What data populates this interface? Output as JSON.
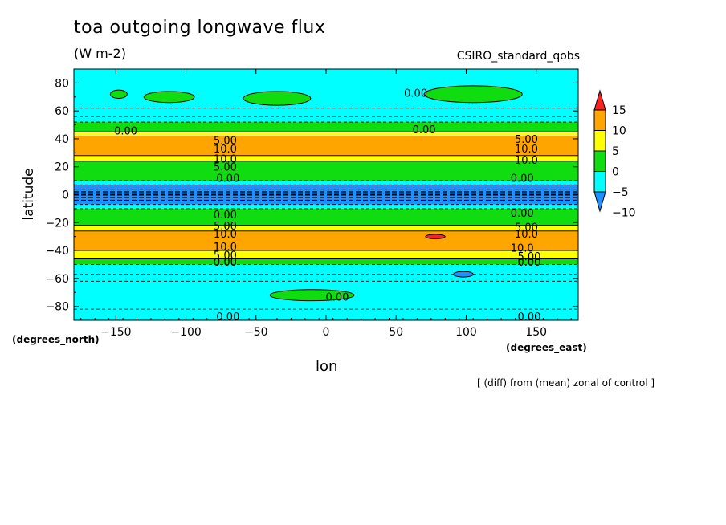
{
  "chart_data": {
    "type": "heatmap",
    "title": "toa outgoing longwave flux",
    "units": "(W m-2)",
    "model": "CSIRO_standard_qobs",
    "xlabel": "lon",
    "ylabel": "latitude",
    "x_units": "(degrees_east)",
    "y_units": "(degrees_north)",
    "note": "[ (diff) from (mean) zonal of control ]",
    "xlim": [
      -180,
      180
    ],
    "ylim": [
      -90,
      90
    ],
    "x_ticks": [
      -150,
      -100,
      -50,
      0,
      50,
      100,
      150
    ],
    "y_ticks": [
      80,
      60,
      40,
      20,
      0,
      -20,
      -40,
      -60,
      -80
    ],
    "colorbar": {
      "levels": [
        15,
        10,
        5,
        0,
        -5,
        -10
      ],
      "labels": [
        "15",
        "10",
        "5",
        "0",
        "-5",
        "-10"
      ],
      "colors": [
        "#ff2020",
        "#ffa500",
        "#ffff00",
        "#10dd10",
        "#00ffff",
        "#1e90ff"
      ]
    },
    "bands": [
      {
        "lat_from": -90,
        "lat_to": -50,
        "value": -5
      },
      {
        "lat_from": -50,
        "lat_to": -46,
        "value": 0
      },
      {
        "lat_from": -46,
        "lat_to": -40,
        "value": 5
      },
      {
        "lat_from": -40,
        "lat_to": -26,
        "value": 10
      },
      {
        "lat_from": -26,
        "lat_to": -22,
        "value": 5
      },
      {
        "lat_from": -22,
        "lat_to": -10,
        "value": 0
      },
      {
        "lat_from": -10,
        "lat_to": -7,
        "value": -5
      },
      {
        "lat_from": -7,
        "lat_to": 7,
        "value": -10
      },
      {
        "lat_from": 7,
        "lat_to": 10,
        "value": -5
      },
      {
        "lat_from": 10,
        "lat_to": 24,
        "value": 0
      },
      {
        "lat_from": 24,
        "lat_to": 28,
        "value": 5
      },
      {
        "lat_from": 28,
        "lat_to": 42,
        "value": 10
      },
      {
        "lat_from": 42,
        "lat_to": 45,
        "value": 5
      },
      {
        "lat_from": 45,
        "lat_to": 52,
        "value": 0
      },
      {
        "lat_from": 52,
        "lat_to": 90,
        "value": -5
      }
    ],
    "patches": [
      {
        "lon": -112,
        "lat": 70,
        "rlon": 18,
        "rlat": 4,
        "value": 0
      },
      {
        "lon": -35,
        "lat": 69,
        "rlon": 24,
        "rlat": 5,
        "value": 0
      },
      {
        "lon": 105,
        "lat": 72,
        "rlon": 35,
        "rlat": 6,
        "value": 0
      },
      {
        "lon": -148,
        "lat": 72,
        "rlon": 6,
        "rlat": 3,
        "value": 0
      },
      {
        "lon": -10,
        "lat": -72,
        "rlon": 30,
        "rlat": 4,
        "value": 0
      },
      {
        "lon": 78,
        "lat": -30,
        "rlon": 7,
        "rlat": 1.6,
        "value": 15
      },
      {
        "lon": 98,
        "lat": -57,
        "rlon": 7,
        "rlat": 2,
        "value": -10
      }
    ],
    "contour_labels": [
      {
        "text": "0.00",
        "lon": 64,
        "lat": 73
      },
      {
        "text": "0.00",
        "lon": -143,
        "lat": 46
      },
      {
        "text": "0.00",
        "lon": 70,
        "lat": 47
      },
      {
        "text": "5.00",
        "lon": -72,
        "lat": 39
      },
      {
        "text": "10.0",
        "lon": -72,
        "lat": 33
      },
      {
        "text": "10.0",
        "lon": -72,
        "lat": 26
      },
      {
        "text": "5.00",
        "lon": -72,
        "lat": 20
      },
      {
        "text": "5.00",
        "lon": 143,
        "lat": 40
      },
      {
        "text": "10.0",
        "lon": 143,
        "lat": 33
      },
      {
        "text": "10.0",
        "lon": 143,
        "lat": 25
      },
      {
        "text": "5.00",
        "lon": -72,
        "lat": -22
      },
      {
        "text": "10.0",
        "lon": -72,
        "lat": -28
      },
      {
        "text": "10.0",
        "lon": -72,
        "lat": -37
      },
      {
        "text": "5.00",
        "lon": -72,
        "lat": -43
      },
      {
        "text": "0.00",
        "lon": -72,
        "lat": -48
      },
      {
        "text": "0.00",
        "lon": -72,
        "lat": -14
      },
      {
        "text": "0.00",
        "lon": 140,
        "lat": 12
      },
      {
        "text": "0.00",
        "lon": 140,
        "lat": -13
      },
      {
        "text": "5.00",
        "lon": 143,
        "lat": -23
      },
      {
        "text": "10.0",
        "lon": 143,
        "lat": -28
      },
      {
        "text": "10.0",
        "lon": 140,
        "lat": -38
      },
      {
        "text": "5.00",
        "lon": 145,
        "lat": -44
      },
      {
        "text": "0.00",
        "lon": 145,
        "lat": -48
      },
      {
        "text": "0.00",
        "lon": 8,
        "lat": -73
      },
      {
        "text": "0.00",
        "lon": -70,
        "lat": -87
      },
      {
        "text": "0.00",
        "lon": 145,
        "lat": -87
      },
      {
        "text": "0.00",
        "lon": -70,
        "lat": 12
      }
    ]
  }
}
